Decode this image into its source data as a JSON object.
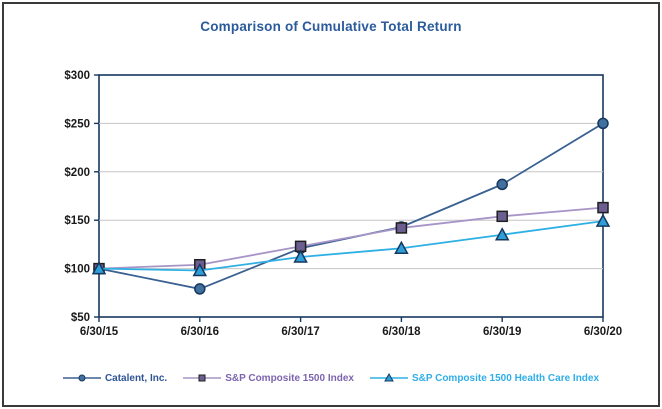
{
  "figure": {
    "title": "Comparison of Cumulative Total Return",
    "title_color": "#2B5B9B"
  },
  "chart_data": {
    "type": "line",
    "title": "Comparison of Cumulative Total Return",
    "categories": [
      "6/30/15",
      "6/30/16",
      "6/30/17",
      "6/30/18",
      "6/30/19",
      "6/30/20"
    ],
    "series": [
      {
        "name": "Catalent, Inc.",
        "values": [
          100,
          79,
          121,
          143,
          187,
          250
        ],
        "marker": "circle",
        "line_color": "#3A6191",
        "marker_fill": "#41709F",
        "marker_stroke": "#17375E",
        "label_color": "#2F5496"
      },
      {
        "name": "S&P Composite 1500 Index",
        "values": [
          100,
          104,
          123,
          142,
          154,
          163
        ],
        "marker": "square",
        "line_color": "#A795C7",
        "marker_fill": "#6C5E90",
        "marker_stroke": "#1F1F1F",
        "label_color": "#7C64AE"
      },
      {
        "name": "S&P Composite 1500 Health Care Index",
        "values": [
          100,
          98,
          112,
          121,
          135,
          149
        ],
        "marker": "triangle",
        "line_color": "#2FB0E4",
        "marker_fill": "#2D9FD8",
        "marker_stroke": "#17375E",
        "label_color": "#2FAEE8"
      }
    ],
    "xlabel": "",
    "ylabel": "",
    "ylim": [
      50,
      300
    ],
    "ytick_step": 50,
    "ytick_labels": [
      "$50",
      "$100",
      "$150",
      "$200",
      "$250",
      "$300"
    ],
    "grid": true,
    "grid_color": "#C6C6C6",
    "axis_color": "#17375E",
    "tick_label_color": "#1A1A1A",
    "legend_position": "bottom"
  }
}
